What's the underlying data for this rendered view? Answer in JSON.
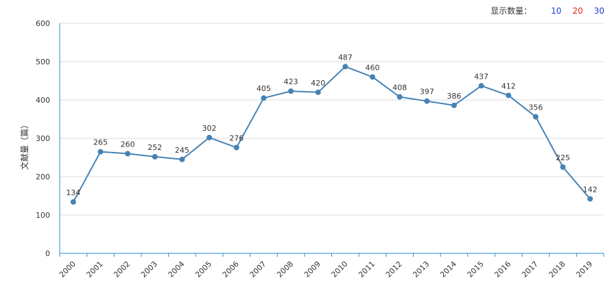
{
  "controls": {
    "label": "显示数量：",
    "options": [
      {
        "label": "10",
        "color": "#1a3ccf"
      },
      {
        "label": "20",
        "color": "#e02020"
      },
      {
        "label": "30",
        "color": "#1a3ccf"
      }
    ]
  },
  "colors": {
    "line": "#4682b4",
    "axis": "#1f8fd6",
    "grid": "#dddddd"
  },
  "chart_data": {
    "type": "line",
    "title": "",
    "xlabel": "",
    "ylabel": "文献量（篇）",
    "ylim": [
      0,
      600
    ],
    "yticks": [
      0,
      100,
      200,
      300,
      400,
      500,
      600
    ],
    "grid": true,
    "categories": [
      "2000",
      "2001",
      "2002",
      "2003",
      "2004",
      "2005",
      "2006",
      "2007",
      "2008",
      "2009",
      "2010",
      "2011",
      "2012",
      "2013",
      "2014",
      "2015",
      "2016",
      "2017",
      "2018",
      "2019"
    ],
    "series": [
      {
        "name": "文献量",
        "values": [
          134,
          265,
          260,
          252,
          245,
          302,
          276,
          405,
          423,
          420,
          487,
          460,
          408,
          397,
          386,
          437,
          412,
          356,
          225,
          142
        ]
      }
    ]
  }
}
